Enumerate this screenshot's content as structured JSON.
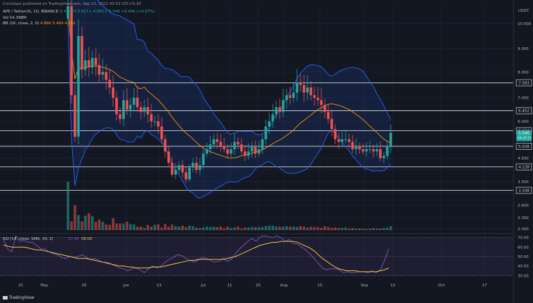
{
  "header": {
    "publisher": "CoinGape published on TradingView.com, Sep 12, 2022 00:53 UTC+5:30",
    "symbol": "APE / TetherUS, 1D, BINANCE",
    "ohlc": "O 4.84 H 5.627 L 4.950 C 5.546 +0.496 (+9.87%)",
    "vol": "Vol 54.398M",
    "bb": "BB (20, close, 2, 0)",
    "bb_values": "4.866 5.469 4.262"
  },
  "footer": {
    "brand": "TradingView"
  },
  "colors": {
    "bg": "#131722",
    "up": "#26a69a",
    "down": "#ef5350",
    "bb_band": "#2962ff",
    "basis": "#ff9800",
    "level_line": "#d1d4dc",
    "rsi": "#7e57c2",
    "rsi_ma": "#f5c542"
  },
  "chart_data": [
    {
      "type": "line",
      "series_kind": "candlestick",
      "ylabel": "USDT",
      "y_ticks": [
        2.0,
        2.3,
        2.6,
        3.0,
        3.5,
        4.0,
        4.5,
        5.0,
        6.0,
        7.0,
        8.0,
        9.0,
        10.0
      ],
      "y_tick_labels": [
        "2.000",
        "2.300",
        "2.600",
        "3.000",
        "3.500",
        "4.000",
        "4.500",
        "5.000",
        "6.000",
        "7.000",
        "8.000",
        "9.000",
        "10.000"
      ],
      "ylim": [
        2.0,
        10.6
      ],
      "x_ticks": [
        "21",
        "May",
        "16",
        "Jun",
        "13",
        "Jul",
        "11",
        "25",
        "Aug",
        "15",
        "Sep",
        "12",
        "Oct",
        "17"
      ],
      "horizontal_levels": [
        7.583,
        6.452,
        5.634,
        5.028,
        4.128,
        3.108
      ],
      "level_labels": [
        "7.583",
        "6.452",
        "5.634",
        "5.028",
        "4.128",
        "3.108"
      ],
      "price_label": "5.546",
      "price_sublabel": "04:37:17",
      "candles_close": [
        10.7,
        7.1,
        5.4,
        9.5,
        8.1,
        8.5,
        8.2,
        8.6,
        8.3,
        7.9,
        8.0,
        7.7,
        7.4,
        7.0,
        6.3,
        6.1,
        6.9,
        6.5,
        6.7,
        7.0,
        6.6,
        6.4,
        6.6,
        6.3,
        6.0,
        6.0,
        5.8,
        5.3,
        4.8,
        4.3,
        3.8,
        4.0,
        4.2,
        3.9,
        3.6,
        4.1,
        4.3,
        4.0,
        4.2,
        4.7,
        4.9,
        5.1,
        5.3,
        5.2,
        5.0,
        4.9,
        4.7,
        4.9,
        5.2,
        5.1,
        4.8,
        4.6,
        4.8,
        5.0,
        4.7,
        4.9,
        5.3,
        5.8,
        6.0,
        6.3,
        6.6,
        6.4,
        6.9,
        7.1,
        7.0,
        7.2,
        7.6,
        7.5,
        7.2,
        7.4,
        7.1,
        7.0,
        6.9,
        6.7,
        6.4,
        6.1,
        5.7,
        5.3,
        5.2,
        5.3,
        5.3,
        5.2,
        4.9,
        5.0,
        4.9,
        4.8,
        4.9,
        4.9,
        4.8,
        4.9,
        4.5,
        4.6,
        5.0,
        5.55
      ],
      "volume": [
        10.9,
        2.0,
        5.6,
        3.4,
        2.0,
        3.3,
        3.8,
        3.2,
        1.9,
        2.4,
        1.9,
        1.3,
        1.2,
        2.7,
        1.5,
        1.5,
        1.5,
        1.9,
        1.4,
        1.3,
        0.8,
        0.8,
        0.5,
        1.2,
        0.8,
        1.2,
        1.3,
        0.6,
        1.4,
        0.8,
        1.3,
        0.9,
        0.8,
        1.0,
        0.7,
        1.0,
        0.9,
        0.6,
        0.5,
        0.6,
        0.8,
        0.7,
        0.8,
        0.7,
        0.8,
        0.4,
        0.8,
        0.5,
        0.6,
        0.8,
        0.4,
        0.6,
        0.6,
        0.7,
        0.7,
        0.7,
        0.7,
        0.9,
        1.0,
        1.0,
        0.8,
        0.8,
        0.8,
        0.9,
        0.8,
        0.8,
        0.7,
        0.9,
        0.8,
        0.6,
        0.8,
        0.7,
        0.7,
        0.5,
        0.9,
        0.7,
        0.5,
        0.6,
        0.5,
        0.5,
        0.6,
        0.4,
        0.5,
        0.4,
        0.4,
        0.4,
        0.3,
        0.4,
        0.5,
        0.4,
        0.4,
        0.5,
        0.6,
        0.9
      ]
    },
    {
      "type": "line",
      "title": "RSI (14, close, SMA, 14, 2)",
      "value_label": "58.00",
      "ma_value_label": "37.96",
      "y_ticks": [
        30,
        40,
        50,
        60,
        70
      ],
      "y_tick_labels": [
        "30.00",
        "40.00",
        "50.00",
        "60.00",
        "70.00"
      ],
      "ylim": [
        28,
        72
      ],
      "rsi": [
        68,
        58,
        55,
        72,
        66,
        67,
        65,
        65,
        62,
        58,
        58,
        55,
        53,
        52,
        49,
        48,
        50,
        49,
        50,
        52,
        49,
        47,
        48,
        46,
        44,
        44,
        42,
        40,
        38,
        37,
        35,
        37,
        38,
        36,
        33,
        37,
        40,
        38,
        40,
        44,
        47,
        49,
        52,
        51,
        48,
        46,
        44,
        46,
        49,
        48,
        46,
        44,
        45,
        48,
        45,
        47,
        53,
        58,
        62,
        66,
        69,
        66,
        71,
        72,
        71,
        70,
        72,
        70,
        66,
        68,
        64,
        63,
        60,
        57,
        53,
        48,
        43,
        38,
        36,
        37,
        37,
        36,
        33,
        34,
        33,
        33,
        34,
        34,
        33,
        35,
        33,
        36,
        46,
        58
      ],
      "rsi_ma": [
        62,
        61,
        60,
        60,
        60,
        60,
        59,
        58,
        57,
        57,
        56,
        55,
        54,
        53,
        52,
        51,
        50,
        49,
        48,
        48,
        48,
        47,
        46,
        45,
        44,
        43,
        42,
        41,
        40,
        40,
        39,
        39,
        38,
        38,
        38,
        38,
        39,
        39,
        39,
        40,
        41,
        42,
        43,
        44,
        45,
        46,
        46,
        47,
        47,
        47,
        47,
        47,
        47,
        47,
        48,
        49,
        50,
        52,
        54,
        56,
        58,
        60,
        62,
        63,
        64,
        65,
        65,
        66,
        66,
        66,
        66,
        65,
        63,
        61,
        59,
        56,
        52,
        48,
        45,
        42,
        39,
        37,
        36,
        35,
        35,
        35,
        34,
        34,
        34,
        34,
        34,
        35,
        36,
        38
      ]
    }
  ]
}
